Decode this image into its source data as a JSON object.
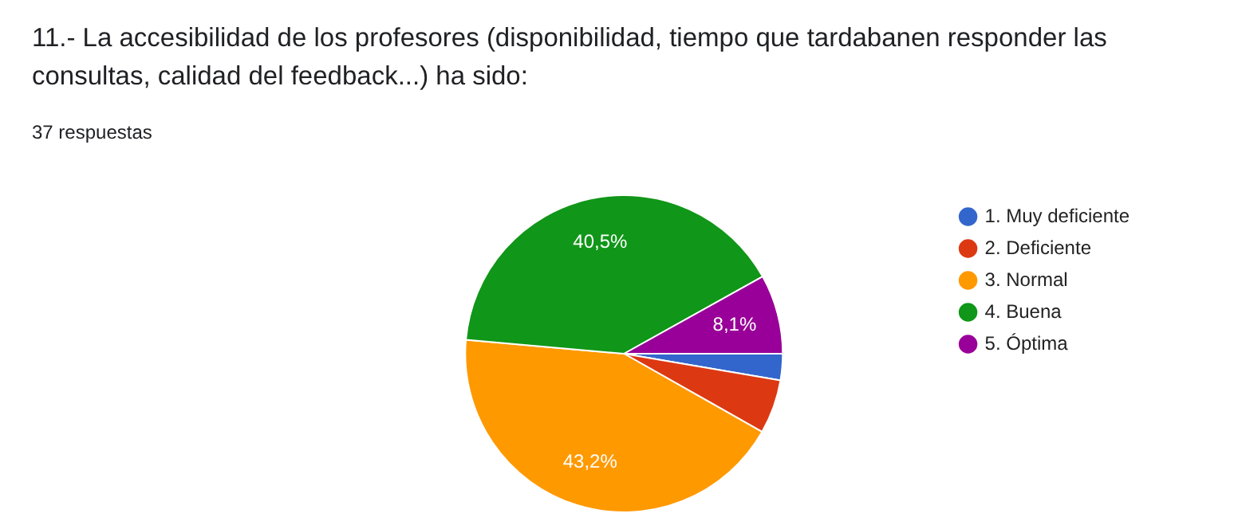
{
  "chart_data": {
    "type": "pie",
    "title": "11.- La accesibilidad de los profesores (disponibilidad, tiempo que tardabanen responder las consultas, calidad del feedback...) ha sido:",
    "subtitle": "37 respuestas",
    "categories": [
      "1. Muy deficiente",
      "2. Deficiente",
      "3. Normal",
      "4. Buena",
      "5. Óptima"
    ],
    "values": [
      2.7,
      5.5,
      43.2,
      40.5,
      8.1
    ],
    "colors": [
      "#3366cc",
      "#dc3912",
      "#ff9900",
      "#109618",
      "#990099"
    ],
    "value_labels": [
      null,
      null,
      "43,2%",
      "40,5%",
      "8,1%"
    ],
    "legend": "right"
  }
}
